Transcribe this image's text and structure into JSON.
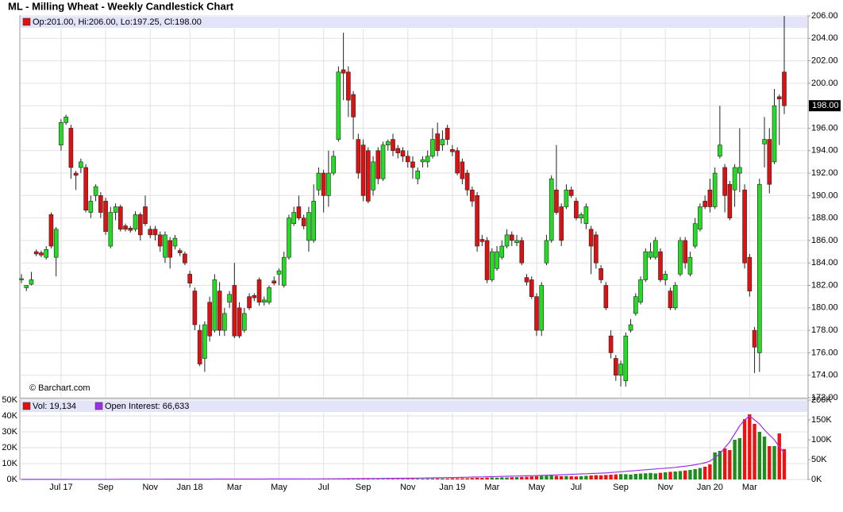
{
  "chart_data": [
    {
      "type": "candlestick",
      "title": "ML - Milling Wheat - Weekly Candlestick Chart",
      "legend": "Op:201.00, Hi:206.00, Lo:197.25, Cl:198.00",
      "last_price_label": "198.00",
      "credit": "© Barchart.com",
      "up_color": "#22dd22",
      "down_color": "#dd1111",
      "grid": true,
      "categories": [
        null,
        null,
        null,
        null,
        null,
        null,
        null,
        null,
        "Jul 17",
        null,
        null,
        null,
        null,
        null,
        null,
        null,
        null,
        "Sep",
        null,
        null,
        null,
        null,
        null,
        null,
        null,
        null,
        "Nov",
        null,
        null,
        null,
        null,
        null,
        null,
        null,
        "Jan 18",
        null,
        null,
        null,
        null,
        null,
        null,
        null,
        null,
        "Mar",
        null,
        null,
        null,
        null,
        null,
        null,
        null,
        null,
        "May",
        null,
        null,
        null,
        null,
        null,
        null,
        null,
        null,
        "Jul",
        null,
        null,
        null,
        null,
        null,
        null,
        null,
        "Sep",
        null,
        null,
        null,
        null,
        null,
        null,
        null,
        null,
        "Nov",
        null,
        null,
        null,
        null,
        null,
        null,
        null,
        null,
        "Jan 19",
        null,
        null,
        null,
        null,
        null,
        null,
        null,
        "Mar",
        null,
        null,
        null,
        null,
        null,
        null,
        null,
        null,
        "May",
        null,
        null,
        null,
        null,
        null,
        null,
        null,
        "Jul",
        null,
        null,
        null,
        null,
        null,
        null,
        null,
        null,
        "Sep",
        null,
        null,
        null,
        null,
        null,
        null,
        null,
        null,
        "Nov",
        null,
        null,
        null,
        null,
        null,
        null,
        null,
        null,
        "Jan 20",
        null,
        null,
        null,
        null,
        null,
        null,
        null,
        "Mar",
        null,
        null,
        null,
        null,
        null,
        null,
        null
      ],
      "open": [
        182.5,
        181.8,
        182.1,
        185,
        184.9,
        184.5,
        188.3,
        184.5,
        194.5,
        196.5,
        196,
        192,
        192.5,
        192.5,
        188.5,
        190,
        190,
        189.5,
        185.5,
        188.5,
        189,
        187.3,
        187.1,
        187,
        188.3,
        189,
        187,
        187,
        186.5,
        184.5,
        186,
        185.5,
        185.1,
        184.8,
        183,
        181.5,
        178,
        175.5,
        180.5,
        178,
        181.5,
        178,
        180.5,
        182,
        180,
        178,
        181,
        181.1,
        182.5,
        180.5,
        180.5,
        182.4,
        183,
        182,
        184.5,
        187.5,
        189,
        188,
        186,
        186,
        190.5,
        192,
        190,
        192,
        195,
        201.2,
        201,
        199,
        195,
        194.5,
        194,
        190.5,
        194,
        191.5,
        194.5,
        195,
        194.2,
        194,
        193.5,
        193,
        191.5,
        193,
        193,
        193.5,
        195.5,
        194.5,
        196,
        194.1,
        194,
        193,
        192,
        190.5,
        190,
        186.1,
        186,
        182.5,
        183.5,
        184.5,
        185.5,
        186.5,
        185.8,
        186,
        182.7,
        182.5,
        181,
        178,
        184,
        186,
        190.5,
        189,
        189,
        190.5,
        189.5,
        188,
        187.5,
        187,
        186.5,
        183.5,
        182,
        177.5,
        175.5,
        174,
        173.5,
        178,
        179.5,
        180.5,
        182.5,
        184.5,
        184.5,
        185,
        182.5,
        181.5,
        180,
        183,
        186,
        183,
        185.5,
        187,
        189.5,
        190.5,
        189,
        193.5,
        192.5,
        191,
        190.5,
        192,
        190.5,
        184.5,
        178,
        176,
        194.6,
        195,
        193,
        198.8,
        201
      ],
      "high": [
        183,
        182,
        183.2,
        185.2,
        185.1,
        185.5,
        188.5,
        187.2,
        196.8,
        197.2,
        196.3,
        192.2,
        193.3,
        192.8,
        190,
        191,
        190.3,
        189.8,
        189,
        189.3,
        189.2,
        187.5,
        187.3,
        188.6,
        188.5,
        190,
        187.3,
        187.3,
        186.8,
        186.8,
        186.3,
        186.5,
        185.3,
        185,
        183.3,
        181.8,
        178.5,
        178.8,
        181,
        183,
        182.3,
        180,
        181.5,
        184,
        180.5,
        180,
        181.3,
        181.3,
        182.7,
        181,
        182,
        182.8,
        183.5,
        185,
        188.3,
        189,
        190,
        188.3,
        189,
        191,
        192.5,
        192.3,
        194,
        194,
        201.5,
        204.5,
        201.5,
        199.3,
        195.5,
        195,
        194.3,
        193.5,
        194.3,
        194.8,
        195,
        195.5,
        194.5,
        194.3,
        194,
        193.5,
        192.5,
        193.5,
        194,
        196,
        196.5,
        195.8,
        196.3,
        194.5,
        194.3,
        193.3,
        192.3,
        190.8,
        190.3,
        186.5,
        186.3,
        185.3,
        185.5,
        186,
        187,
        186.8,
        186.5,
        186.3,
        183,
        182.8,
        181.3,
        182.3,
        186.5,
        191.8,
        194.5,
        189.3,
        191,
        190.8,
        189.8,
        188.5,
        189.3,
        187.3,
        186.8,
        183.8,
        182.3,
        178,
        175.8,
        175.3,
        177.8,
        179,
        181.3,
        182.8,
        185.3,
        185.8,
        186.3,
        185.3,
        183.3,
        181.8,
        182.3,
        186.3,
        186.3,
        185,
        188,
        189.3,
        190,
        191.5,
        192.5,
        198,
        192.8,
        191.3,
        192.8,
        196,
        191,
        184.8,
        178.3,
        191.5,
        197,
        196,
        199.5,
        199,
        206
      ],
      "low": [
        182.2,
        181.5,
        182,
        184.6,
        184.5,
        184.3,
        185.3,
        182.8,
        194,
        196.3,
        191.5,
        190.5,
        192,
        188.5,
        188,
        189.5,
        188,
        186.5,
        185.3,
        187.8,
        186.8,
        186.8,
        186.7,
        186.8,
        186,
        187.3,
        186.2,
        186,
        185,
        184,
        183.5,
        185.2,
        184.6,
        183.8,
        181.8,
        178,
        174.8,
        174.3,
        177,
        177.8,
        177.5,
        177.5,
        180,
        177.3,
        177.3,
        177.8,
        179.8,
        180.6,
        180.2,
        180.2,
        180.3,
        182,
        182,
        181.8,
        184.3,
        187.3,
        187.8,
        187,
        185,
        185.8,
        190,
        188.5,
        189,
        191.8,
        194.8,
        198.5,
        197,
        195,
        191.5,
        189.5,
        189.3,
        190,
        191,
        191.3,
        194,
        193.5,
        193.3,
        193,
        192.5,
        191.5,
        191,
        192.5,
        192.5,
        193.3,
        193.5,
        194,
        194.5,
        193.5,
        191.8,
        191,
        190,
        189,
        185,
        185.5,
        182.2,
        182.3,
        183.3,
        184.3,
        185.3,
        185.5,
        185.5,
        183.8,
        182,
        180.8,
        177.5,
        177.5,
        183.8,
        185.8,
        188.3,
        185.5,
        188.8,
        189.8,
        187.8,
        187.5,
        187,
        183,
        183.5,
        182.2,
        179.8,
        175.5,
        173.5,
        173,
        173,
        177.8,
        179.3,
        180.3,
        182.3,
        184.3,
        184.3,
        182.3,
        182,
        179.8,
        179.8,
        182.8,
        183.5,
        182.8,
        185.3,
        186.8,
        188.8,
        188.5,
        188.8,
        193.3,
        188.5,
        187.8,
        189,
        190.3,
        183.5,
        181,
        174.2,
        174.3,
        192.5,
        190.2,
        192.8,
        194.5,
        197.25
      ],
      "close": [
        182.6,
        182,
        182.5,
        184.8,
        184.7,
        185.2,
        185.5,
        187,
        196.5,
        197,
        192.5,
        191.8,
        193,
        188.7,
        189.5,
        190.8,
        188.5,
        186.8,
        188.5,
        189,
        187,
        187,
        186.9,
        188.3,
        186.5,
        187.5,
        186.5,
        186.5,
        185.5,
        186.5,
        184.5,
        186.2,
        184.9,
        184,
        182.2,
        178.5,
        175,
        178.5,
        177.5,
        182.5,
        178,
        179.5,
        181.2,
        177.5,
        177.5,
        179.5,
        180,
        180.9,
        180.5,
        180.7,
        181.8,
        182.2,
        183.3,
        184.5,
        188,
        188.5,
        188,
        187.3,
        188.5,
        189.5,
        192,
        190,
        192,
        193.5,
        201,
        200.9,
        198.5,
        197,
        192,
        190,
        189.5,
        193,
        191.5,
        194.5,
        194.8,
        194,
        193.8,
        193.5,
        193,
        192.5,
        192.2,
        193.2,
        193.5,
        195,
        194,
        195,
        195,
        193.9,
        192,
        191.5,
        190.5,
        189.5,
        185.5,
        185.9,
        182.5,
        185,
        185,
        185.5,
        186.5,
        186,
        186,
        184,
        182.3,
        181,
        178,
        182,
        186,
        191.5,
        188.5,
        186,
        190.5,
        190,
        188,
        188.3,
        189,
        185.5,
        184,
        182.5,
        180,
        176,
        174,
        175,
        177.5,
        178.5,
        181,
        182.5,
        185,
        185,
        186,
        182.5,
        183,
        180,
        182,
        186,
        184,
        184.5,
        187.5,
        189,
        189,
        189,
        192,
        194.5,
        190,
        188,
        192.5,
        192.5,
        184,
        181.5,
        176.5,
        191,
        195,
        191,
        198,
        198.6,
        198
      ],
      "ylim": [
        172,
        206
      ],
      "yticks": [
        {
          "value": 172,
          "label": "172.00"
        },
        {
          "value": 174,
          "label": "174.00"
        },
        {
          "value": 176,
          "label": "176.00"
        },
        {
          "value": 178,
          "label": "178.00"
        },
        {
          "value": 180,
          "label": "180.00"
        },
        {
          "value": 182,
          "label": "182.00"
        },
        {
          "value": 184,
          "label": "184.00"
        },
        {
          "value": 186,
          "label": "186.00"
        },
        {
          "value": 188,
          "label": "188.00"
        },
        {
          "value": 190,
          "label": "190.00"
        },
        {
          "value": 192,
          "label": "192.00"
        },
        {
          "value": 194,
          "label": "194.00"
        },
        {
          "value": 196,
          "label": "196.00"
        },
        {
          "value": 198,
          "label": "198.00"
        },
        {
          "value": 200,
          "label": "200.00"
        },
        {
          "value": 202,
          "label": "202.00"
        },
        {
          "value": 204,
          "label": "204.00"
        },
        {
          "value": 206,
          "label": "206.00"
        }
      ]
    },
    {
      "type": "volume",
      "up_color": "#1e8c1e",
      "down_color": "#ee1111",
      "series": [
        {
          "name": "Vol: 19,134",
          "color": "#dd1111",
          "values": [
            120,
            90,
            110,
            140,
            100,
            130,
            160,
            150,
            210,
            180,
            170,
            150,
            160,
            190,
            140,
            130,
            170,
            180,
            160,
            150,
            140,
            130,
            120,
            150,
            170,
            160,
            140,
            150,
            180,
            170,
            190,
            160,
            150,
            170,
            200,
            230,
            260,
            240,
            250,
            220,
            230,
            210,
            200,
            240,
            220,
            210,
            190,
            180,
            200,
            210,
            220,
            240,
            260,
            280,
            310,
            290,
            270,
            300,
            320,
            340,
            360,
            330,
            350,
            380,
            450,
            520,
            480,
            430,
            400,
            420,
            390,
            370,
            360,
            350,
            340,
            330,
            360,
            380,
            400,
            420,
            450,
            480,
            520,
            560,
            600,
            640,
            620,
            680,
            700,
            750,
            800,
            900,
            1000,
            950,
            1100,
            1200,
            1150,
            1300,
            1250,
            1400,
            1500,
            1600,
            1700,
            1900,
            2000,
            2200,
            2400,
            2600,
            2300,
            2100,
            2200,
            2000,
            1900,
            2100,
            2300,
            2500,
            2700,
            2600,
            2800,
            3000,
            3200,
            3400,
            3300,
            3100,
            3500,
            3700,
            3900,
            4100,
            3800,
            4200,
            4500,
            4800,
            5000,
            5300,
            5600,
            6000,
            6500,
            7200,
            8000,
            9500,
            17000,
            18000,
            19500,
            18500,
            25000,
            26000,
            38000,
            41000,
            35000,
            30000,
            27000,
            21000,
            21000,
            29000,
            19134
          ]
        },
        {
          "name": "Open Interest: 66,633",
          "color": "#9b30e8",
          "axis": "y2",
          "values": [
            200,
            210,
            220,
            230,
            240,
            250,
            260,
            270,
            280,
            300,
            320,
            340,
            360,
            380,
            400,
            420,
            440,
            460,
            480,
            500,
            520,
            540,
            560,
            580,
            600,
            620,
            640,
            660,
            680,
            700,
            720,
            740,
            760,
            780,
            800,
            820,
            840,
            860,
            880,
            900,
            920,
            940,
            960,
            980,
            1000,
            1020,
            1040,
            1060,
            1080,
            1100,
            1120,
            1140,
            1160,
            1180,
            1200,
            1250,
            1300,
            1350,
            1400,
            1450,
            1500,
            1550,
            1600,
            1650,
            1700,
            1800,
            1900,
            2000,
            2100,
            2200,
            2300,
            2400,
            2500,
            2600,
            2700,
            2800,
            2900,
            3000,
            3100,
            3200,
            3400,
            3600,
            3800,
            4000,
            4200,
            4400,
            4600,
            4800,
            5000,
            5300,
            5600,
            5900,
            6200,
            6500,
            6800,
            7100,
            7400,
            7700,
            8000,
            8300,
            8600,
            8900,
            9200,
            9500,
            9800,
            10200,
            10600,
            11000,
            11500,
            12000,
            12500,
            13000,
            13500,
            14000,
            14500,
            15000,
            15500,
            16000,
            16500,
            17500,
            18500,
            19500,
            20500,
            21500,
            22500,
            23500,
            24500,
            25500,
            26500,
            27500,
            28500,
            29500,
            30500,
            32000,
            33500,
            35000,
            37000,
            39500,
            42000,
            46000,
            55000,
            65000,
            80000,
            95000,
            115000,
            135000,
            150000,
            160000,
            150000,
            140000,
            125000,
            112000,
            100000,
            82000,
            66633
          ]
        }
      ],
      "ylim": [
        0,
        50000
      ],
      "yticks": [
        {
          "value": 0,
          "label": "0K"
        },
        {
          "value": 10000,
          "label": "10K"
        },
        {
          "value": 20000,
          "label": "20K"
        },
        {
          "value": 30000,
          "label": "30K"
        },
        {
          "value": 40000,
          "label": "40K"
        },
        {
          "value": 50000,
          "label": "50K"
        }
      ],
      "y2lim": [
        0,
        200000
      ],
      "y2ticks": [
        {
          "value": 0,
          "label": "0K"
        },
        {
          "value": 50000,
          "label": "50K"
        },
        {
          "value": 100000,
          "label": "100K"
        },
        {
          "value": 150000,
          "label": "150K"
        },
        {
          "value": 200000,
          "label": "200K"
        }
      ]
    }
  ]
}
